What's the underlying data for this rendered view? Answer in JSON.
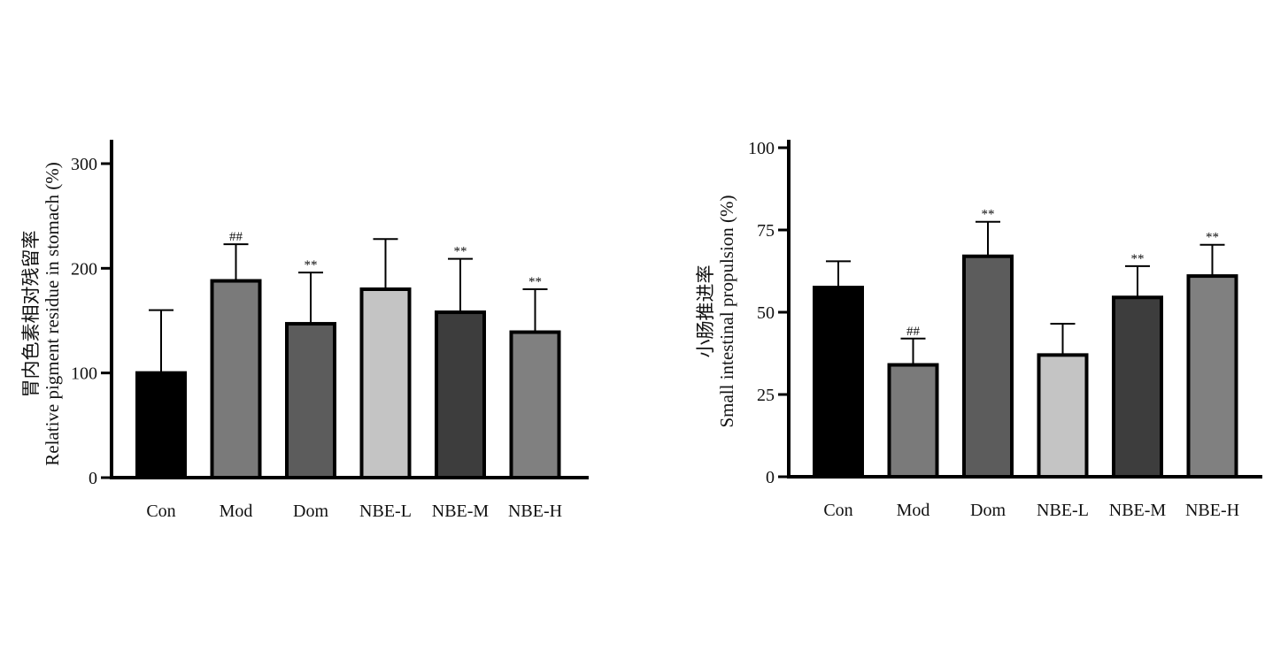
{
  "chart_data": [
    {
      "type": "bar",
      "title": "",
      "xlabel": "",
      "ylabel_cn": "胃内色素相对残留率",
      "ylabel": "Relative pigment residue in stomach (%)",
      "categories": [
        "Con",
        "Mod",
        "Dom",
        "NBE-L",
        "NBE-M",
        "NBE-H"
      ],
      "values": [
        100,
        188,
        147,
        180,
        158,
        139
      ],
      "errors": [
        60,
        35,
        49,
        48,
        51,
        41
      ],
      "significance": [
        "",
        "##",
        "**",
        "",
        "**",
        "**"
      ],
      "colors": [
        "#000000",
        "#7a7a7a",
        "#5c5c5c",
        "#c4c4c4",
        "#3d3d3d",
        "#808080"
      ],
      "ylim": [
        0,
        320
      ],
      "yticks": [
        0,
        100,
        200,
        300
      ],
      "grid": false
    },
    {
      "type": "bar",
      "title": "",
      "xlabel": "",
      "ylabel_cn": "小肠推进率",
      "ylabel": "Small intestinal propulsion (%)",
      "categories": [
        "Con",
        "Mod",
        "Dom",
        "NBE-L",
        "NBE-M",
        "NBE-H"
      ],
      "values": [
        57.5,
        34,
        67,
        37,
        54.5,
        61
      ],
      "errors": [
        8,
        8,
        10.5,
        9.5,
        9.5,
        9.5
      ],
      "significance": [
        "",
        "##",
        "**",
        "",
        "**",
        "**"
      ],
      "colors": [
        "#000000",
        "#7a7a7a",
        "#5c5c5c",
        "#c4c4c4",
        "#3d3d3d",
        "#808080"
      ],
      "ylim": [
        0,
        102
      ],
      "yticks": [
        0,
        25,
        50,
        75,
        100
      ],
      "grid": false
    }
  ]
}
